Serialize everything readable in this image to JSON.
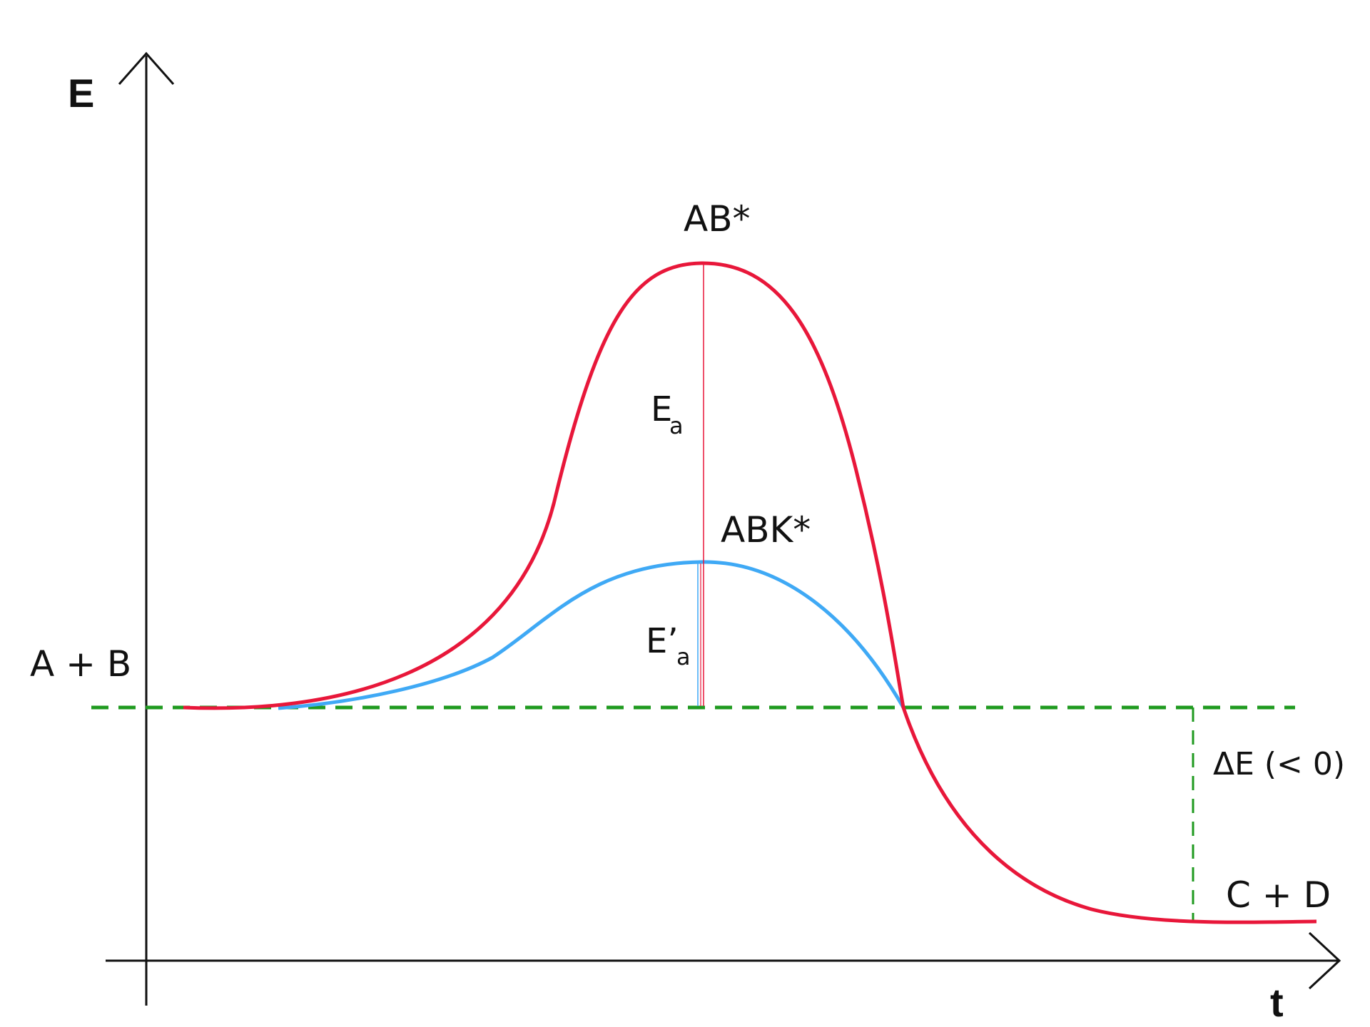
{
  "axes": {
    "y_label": "E",
    "x_label": "t"
  },
  "labels": {
    "reactants": "A + B",
    "products": "C + D",
    "uncatalyzed_ts": "AB*",
    "catalyzed_ts": "ABK*",
    "activation_energy": "E",
    "activation_energy_sub": "a",
    "catalyzed_activation_energy": "E’",
    "catalyzed_activation_energy_sub": "a",
    "delta_e": "ΔE (< 0)"
  },
  "colors": {
    "uncatalyzed_curve": "#e8173a",
    "catalyzed_curve": "#3fa9f5",
    "reference_line": "#1f9a1f",
    "axes": "#111111"
  },
  "curves": {
    "uncatalyzed": "red line: higher barrier (AB*)",
    "catalyzed": "blue line: lower barrier (ABK*)"
  }
}
